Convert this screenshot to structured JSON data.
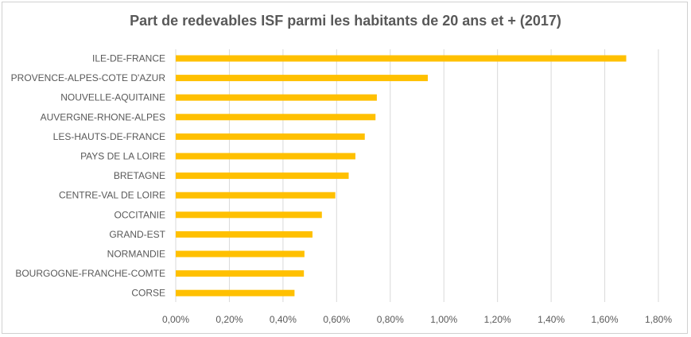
{
  "chart_data": {
    "type": "bar",
    "orientation": "horizontal",
    "title": "Part de redevables ISF parmi les habitants de 20 ans et + (2017)",
    "categories": [
      "ILE-DE-FRANCE",
      "PROVENCE-ALPES-COTE D'AZUR",
      "NOUVELLE-AQUITAINE",
      "AUVERGNE-RHONE-ALPES",
      "LES-HAUTS-DE-FRANCE",
      "PAYS DE LA LOIRE",
      "BRETAGNE",
      "CENTRE-VAL DE LOIRE",
      "OCCITANIE",
      "GRAND-EST",
      "NORMANDIE",
      "BOURGOGNE-FRANCHE-COMTE",
      "CORSE"
    ],
    "values": [
      1.68,
      0.94,
      0.75,
      0.745,
      0.705,
      0.67,
      0.645,
      0.595,
      0.545,
      0.51,
      0.48,
      0.478,
      0.443
    ],
    "xlim": [
      0,
      1.8
    ],
    "xticks": [
      0,
      0.2,
      0.4,
      0.6,
      0.8,
      1.0,
      1.2,
      1.4,
      1.6,
      1.8
    ],
    "xtick_labels": [
      "0,00%",
      "0,20%",
      "0,40%",
      "0,60%",
      "0,80%",
      "1,00%",
      "1,20%",
      "1,40%",
      "1,60%",
      "1,80%"
    ],
    "grid": "vertical",
    "legend": "none",
    "bar_color": "#FFC000",
    "grid_color": "#d9d9d9"
  }
}
